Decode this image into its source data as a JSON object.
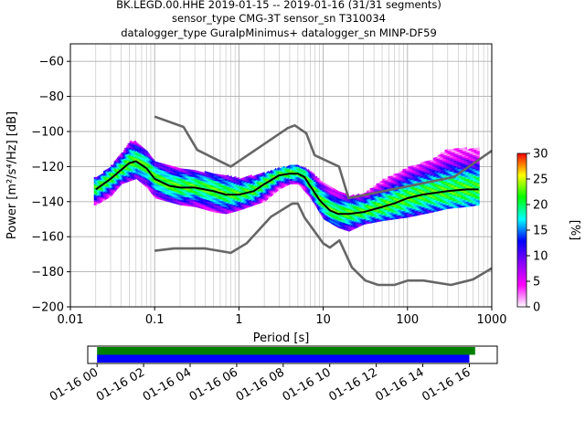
{
  "header": {
    "line1": "BK.LEGD.00.HHE   2019-01-15 -- 2019-01-16  (31/31 segments)",
    "line2": "sensor_type CMG-3T sensor_sn T310034",
    "line3": "datalogger_type GuralpMinimus+ datalogger_sn MINP-DF59"
  },
  "chart_data": [
    {
      "type": "heatmap",
      "subtype": "probabilistic-power-spectral-density",
      "xlabel": "Period [s]",
      "ylabel": "Power [m²/s⁴/Hz] [dB]",
      "xscale": "log",
      "xlim": [
        0.01,
        1000
      ],
      "ylim": [
        -200,
        -50
      ],
      "grid": true,
      "x_ticks": [
        {
          "value": 0.01,
          "label": "0.01"
        },
        {
          "value": 0.1,
          "label": "0.1"
        },
        {
          "value": 1,
          "label": "1"
        },
        {
          "value": 10,
          "label": "10"
        },
        {
          "value": 100,
          "label": "100"
        },
        {
          "value": 1000,
          "label": "1000"
        }
      ],
      "y_ticks": [
        {
          "value": -60,
          "label": "−60"
        },
        {
          "value": -80,
          "label": "−80"
        },
        {
          "value": -100,
          "label": "−100"
        },
        {
          "value": -120,
          "label": "−120"
        },
        {
          "value": -140,
          "label": "−140"
        },
        {
          "value": -160,
          "label": "−160"
        },
        {
          "value": -180,
          "label": "−180"
        },
        {
          "value": -200,
          "label": "−200"
        }
      ],
      "series": [
        {
          "name": "",
          "role": "new-high-noise-model",
          "color": "#666666",
          "x": [
            0.1,
            0.22,
            0.32,
            0.8,
            3.8,
            4.6,
            6.3,
            7.9,
            15.4,
            20,
            354.8,
            1000
          ],
          "y": [
            -91.5,
            -97.4,
            -110.5,
            -120,
            -98,
            -96.5,
            -101,
            -113.5,
            -120,
            -138,
            -126,
            -111
          ]
        },
        {
          "name": "",
          "role": "new-low-noise-model",
          "color": "#666666",
          "x": [
            0.1,
            0.17,
            0.4,
            0.8,
            1.24,
            2.4,
            4.3,
            5,
            6,
            10,
            12,
            15.6,
            21.9,
            31.6,
            45,
            70,
            101,
            154,
            328,
            600,
            1000
          ],
          "y": [
            -168,
            -166.7,
            -166.7,
            -169.2,
            -163.7,
            -148.6,
            -141.1,
            -141.1,
            -149,
            -163.8,
            -166.2,
            -162.1,
            -177.5,
            -185,
            -187.5,
            -187.5,
            -185,
            -185,
            -187.5,
            -184.4,
            -178
          ]
        },
        {
          "name": "",
          "role": "mode",
          "color": "#000000",
          "x": [
            0.02,
            0.03,
            0.05,
            0.06,
            0.08,
            0.1,
            0.15,
            0.2,
            0.3,
            0.5,
            0.7,
            1,
            1.5,
            2,
            3,
            4,
            5,
            6,
            7,
            9,
            12,
            15,
            20,
            30,
            50,
            70,
            100,
            150,
            300,
            500,
            700
          ],
          "y": [
            -133,
            -127,
            -118,
            -117,
            -121,
            -127,
            -131,
            -132,
            -132,
            -134,
            -136,
            -136,
            -134,
            -130,
            -125,
            -124,
            -124,
            -126,
            -131,
            -139,
            -145,
            -147,
            -147,
            -146,
            -143,
            -141,
            -138,
            -136,
            -134,
            -133,
            -133
          ]
        }
      ],
      "density": {
        "values_shown": "percentage of probability per bin",
        "upper_bound_x": [
          0.02,
          0.03,
          0.04,
          0.05,
          0.06,
          0.08,
          0.1,
          0.2,
          0.3,
          0.5,
          1,
          2,
          3,
          4,
          5,
          6,
          7,
          10,
          15,
          20,
          30,
          50,
          100,
          200,
          300,
          500,
          700
        ],
        "upper_bound_y": [
          -127,
          -120,
          -113,
          -106,
          -106,
          -112,
          -118,
          -121,
          -123,
          -124,
          -127,
          -124,
          -121,
          -120,
          -120,
          -121,
          -123,
          -130,
          -135,
          -137,
          -136,
          -128,
          -121,
          -116,
          -110,
          -110,
          -110
        ],
        "lower_bound_x": [
          0.02,
          0.03,
          0.04,
          0.06,
          0.08,
          0.1,
          0.2,
          0.3,
          0.5,
          0.7,
          1,
          2,
          3,
          4,
          5,
          7,
          10,
          15,
          20,
          30,
          50,
          100,
          200,
          300,
          500,
          700
        ],
        "lower_bound_y": [
          -142,
          -137,
          -130,
          -127,
          -132,
          -138,
          -142,
          -143,
          -146,
          -147,
          -145,
          -140,
          -133,
          -130,
          -130,
          -138,
          -150,
          -155,
          -157,
          -153,
          -151,
          -149,
          -146,
          -144,
          -143,
          -142
        ]
      },
      "colorbar": {
        "label": "[%]",
        "min": 0,
        "max": 30,
        "ticks": [
          {
            "value": 0,
            "label": "0"
          },
          {
            "value": 5,
            "label": "5"
          },
          {
            "value": 10,
            "label": "10"
          },
          {
            "value": 15,
            "label": "15"
          },
          {
            "value": 20,
            "label": "20"
          },
          {
            "value": 25,
            "label": "25"
          },
          {
            "value": 30,
            "label": "30"
          }
        ],
        "colormap": [
          "#ffffff",
          "#ff00ff",
          "#8800ff",
          "#0000ff",
          "#00ffff",
          "#00ff00",
          "#ffff00",
          "#ff0000"
        ]
      }
    },
    {
      "type": "timeline",
      "xlim_hours": [
        -0.4,
        17.2
      ],
      "x_ticks": [
        {
          "value": 0,
          "label": "01-16 00"
        },
        {
          "value": 2,
          "label": "01-16 02"
        },
        {
          "value": 4,
          "label": "01-16 04"
        },
        {
          "value": 6,
          "label": "01-16 06"
        },
        {
          "value": 8,
          "label": "01-16 08"
        },
        {
          "value": 10,
          "label": "01-16 10"
        },
        {
          "value": 12,
          "label": "01-16 12"
        },
        {
          "value": 14,
          "label": "01-16 14"
        },
        {
          "value": 16,
          "label": "01-16 16"
        }
      ],
      "bars": [
        {
          "name": "available-data",
          "color": "#008000",
          "start": 0,
          "end": 16.25
        },
        {
          "name": "used-data",
          "color": "#0000ff",
          "start": 0,
          "end": 16.0
        }
      ]
    }
  ]
}
